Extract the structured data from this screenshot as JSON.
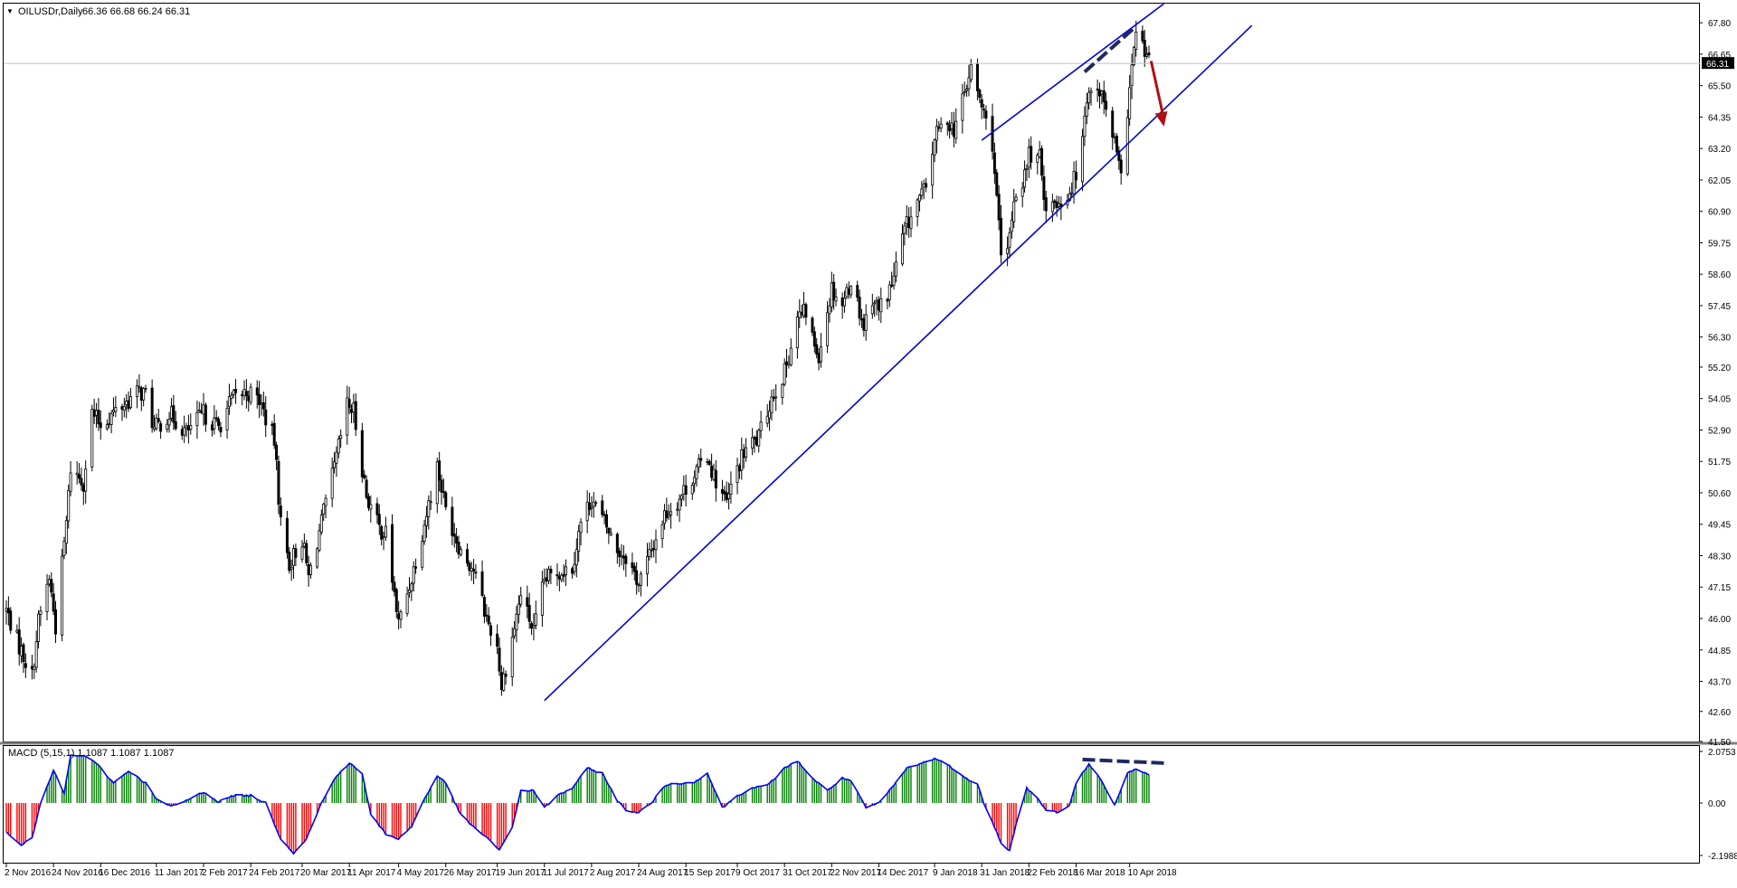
{
  "header": {
    "dropdown_glyph": "▼",
    "symbol_timeframe": "OILUSDr,Daily",
    "ohlc": "66.36 66.68 66.24 66.31"
  },
  "macd_panel": {
    "label": "MACD (5,15,1) 1.1087 1.1087 1.1087",
    "scale_ticks": [
      "2.0753",
      "0.00",
      "-2.1988"
    ]
  },
  "price_axis": {
    "ticks": [
      "67.80",
      "66.65",
      "65.50",
      "64.35",
      "63.20",
      "62.05",
      "60.90",
      "59.75",
      "58.60",
      "57.45",
      "56.30",
      "55.20",
      "54.05",
      "52.90",
      "51.75",
      "50.60",
      "49.45",
      "48.30",
      "47.15",
      "46.00",
      "44.85",
      "43.70",
      "42.60",
      "41.50"
    ],
    "current_price_label": "66.31"
  },
  "time_axis": {
    "labels": [
      "2 Nov 2016",
      "24 Nov 2016",
      "16 Dec 2016",
      "11 Jan 2017",
      "2 Feb 2017",
      "24 Feb 2017",
      "20 Mar 2017",
      "11 Apr 2017",
      "4 May 2017",
      "26 May 2017",
      "19 Jun 2017",
      "11 Jul 2017",
      "2 Aug 2017",
      "24 Aug 2017",
      "15 Sep 2017",
      "9 Oct 2017",
      "31 Oct 2017",
      "22 Nov 2017",
      "14 Dec 2017",
      "9 Jan 2018",
      "31 Jan 2018",
      "22 Feb 2018",
      "16 Mar 2018",
      "10 Apr 2018"
    ]
  },
  "chart_data": [
    {
      "type": "candlestick",
      "title": "OILUSDr,Daily",
      "x_range": [
        "2 Nov 2016",
        "19 Apr 2018"
      ],
      "ylim": [
        41.5,
        68.5
      ],
      "grid": false,
      "current_price": 66.31,
      "anchors": [
        [
          "2 Nov 2016",
          46.3
        ],
        [
          "8 Nov 2016",
          45.0
        ],
        [
          "14 Nov 2016",
          43.9
        ],
        [
          "17 Nov 2016",
          45.9
        ],
        [
          "22 Nov 2016",
          47.5
        ],
        [
          "25 Nov 2016",
          45.7
        ],
        [
          "30 Nov 2016",
          49.5
        ],
        [
          "2 Dec 2016",
          51.5
        ],
        [
          "8 Dec 2016",
          51.0
        ],
        [
          "12 Dec 2016",
          53.5
        ],
        [
          "16 Dec 2016",
          53.1
        ],
        [
          "23 Dec 2016",
          53.6
        ],
        [
          "3 Jan 2017",
          54.3
        ],
        [
          "6 Jan 2017",
          54.2
        ],
        [
          "10 Jan 2017",
          52.9
        ],
        [
          "17 Jan 2017",
          53.5
        ],
        [
          "25 Jan 2017",
          52.8
        ],
        [
          "2 Feb 2017",
          53.5
        ],
        [
          "9 Feb 2017",
          53.0
        ],
        [
          "15 Feb 2017",
          54.0
        ],
        [
          "22 Feb 2017",
          54.3
        ],
        [
          "28 Feb 2017",
          54.0
        ],
        [
          "7 Mar 2017",
          52.5
        ],
        [
          "10 Mar 2017",
          49.5
        ],
        [
          "14 Mar 2017",
          48.0
        ],
        [
          "20 Mar 2017",
          48.9
        ],
        [
          "23 Mar 2017",
          47.5
        ],
        [
          "29 Mar 2017",
          49.5
        ],
        [
          "4 Apr 2017",
          51.5
        ],
        [
          "10 Apr 2017",
          53.8
        ],
        [
          "13 Apr 2017",
          53.6
        ],
        [
          "19 Apr 2017",
          50.5
        ],
        [
          "25 Apr 2017",
          49.3
        ],
        [
          "28 Apr 2017",
          49.1
        ],
        [
          "4 May 2017",
          45.8
        ],
        [
          "10 May 2017",
          47.5
        ],
        [
          "16 May 2017",
          49.5
        ],
        [
          "22 May 2017",
          51.6
        ],
        [
          "26 May 2017",
          50.0
        ],
        [
          "2 Jun 2017",
          48.5
        ],
        [
          "8 Jun 2017",
          47.8
        ],
        [
          "14 Jun 2017",
          46.0
        ],
        [
          "19 Jun 2017",
          45.0
        ],
        [
          "21 Jun 2017",
          43.5
        ],
        [
          "26 Jun 2017",
          45.3
        ],
        [
          "30 Jun 2017",
          46.9
        ],
        [
          "6 Jul 2017",
          45.5
        ],
        [
          "11 Jul 2017",
          47.4
        ],
        [
          "17 Jul 2017",
          47.7
        ],
        [
          "24 Jul 2017",
          47.9
        ],
        [
          "28 Jul 2017",
          49.5
        ],
        [
          "2 Aug 2017",
          50.4
        ],
        [
          "8 Aug 2017",
          49.5
        ],
        [
          "14 Aug 2017",
          48.5
        ],
        [
          "18 Aug 2017",
          48.3
        ],
        [
          "24 Aug 2017",
          47.3
        ],
        [
          "30 Aug 2017",
          48.5
        ],
        [
          "5 Sep 2017",
          49.8
        ],
        [
          "11 Sep 2017",
          50.3
        ],
        [
          "15 Sep 2017",
          50.8
        ],
        [
          "20 Sep 2017",
          51.4
        ],
        [
          "25 Sep 2017",
          52.0
        ],
        [
          "28 Sep 2017",
          51.2
        ],
        [
          "4 Oct 2017",
          50.2
        ],
        [
          "9 Oct 2017",
          51.5
        ],
        [
          "13 Oct 2017",
          52.2
        ],
        [
          "19 Oct 2017",
          52.6
        ],
        [
          "25 Oct 2017",
          54.1
        ],
        [
          "31 Oct 2017",
          55.0
        ],
        [
          "6 Nov 2017",
          57.0
        ],
        [
          "10 Nov 2017",
          57.2
        ],
        [
          "14 Nov 2017",
          56.0
        ],
        [
          "16 Nov 2017",
          55.7
        ],
        [
          "22 Nov 2017",
          58.1
        ],
        [
          "27 Nov 2017",
          57.5
        ],
        [
          "1 Dec 2017",
          58.4
        ],
        [
          "7 Dec 2017",
          56.7
        ],
        [
          "11 Dec 2017",
          57.8
        ],
        [
          "14 Dec 2017",
          57.3
        ],
        [
          "20 Dec 2017",
          58.2
        ],
        [
          "26 Dec 2017",
          60.2
        ],
        [
          "2 Jan 2018",
          61.4
        ],
        [
          "5 Jan 2018",
          61.7
        ],
        [
          "9 Jan 2018",
          63.6
        ],
        [
          "15 Jan 2018",
          64.3
        ],
        [
          "18 Jan 2018",
          63.9
        ],
        [
          "23 Jan 2018",
          65.2
        ],
        [
          "26 Jan 2018",
          66.1
        ],
        [
          "31 Jan 2018",
          64.7
        ],
        [
          "5 Feb 2018",
          63.4
        ],
        [
          "9 Feb 2018",
          59.2
        ],
        [
          "12 Feb 2018",
          59.3
        ],
        [
          "15 Feb 2018",
          61.4
        ],
        [
          "20 Feb 2018",
          62.2
        ],
        [
          "22 Feb 2018",
          63.0
        ],
        [
          "27 Feb 2018",
          62.8
        ],
        [
          "2 Mar 2018",
          61.1
        ],
        [
          "7 Mar 2018",
          61.2
        ],
        [
          "12 Mar 2018",
          61.5
        ],
        [
          "16 Mar 2018",
          62.2
        ],
        [
          "21 Mar 2018",
          65.1
        ],
        [
          "26 Mar 2018",
          65.6
        ],
        [
          "29 Mar 2018",
          64.8
        ],
        [
          "3 Apr 2018",
          63.4
        ],
        [
          "6 Apr 2018",
          62.0
        ],
        [
          "10 Apr 2018",
          65.5
        ],
        [
          "13 Apr 2018",
          67.4
        ],
        [
          "17 Apr 2018",
          66.7
        ],
        [
          "19 Apr 2018",
          66.3
        ]
      ],
      "annotations": {
        "channel_support_line": {
          "points": [
            [
              "11 Jul 2017",
              43.0
            ],
            [
              "6 Jun 2018",
              67.7
            ]
          ],
          "color": "#0000d8"
        },
        "channel_upper_line": {
          "points": [
            [
              "31 Jan 2018",
              63.5
            ],
            [
              "26 Apr 2018",
              68.5
            ]
          ],
          "color": "#0000d8"
        },
        "price_high_dashed_line": {
          "points": [
            [
              "20 Mar 2018",
              66.0
            ],
            [
              "12 Apr 2018",
              67.6
            ]
          ],
          "color": "#1f2a60"
        },
        "down_arrow": {
          "points": [
            [
              "20 Apr 2018",
              66.4
            ],
            [
              "26 Apr 2018",
              64.0
            ]
          ],
          "color": "#b01010"
        }
      },
      "colors": {
        "candle": "#000000",
        "current_price_line": "#c0c0c0",
        "trendline": "#0000d8"
      }
    },
    {
      "type": "macd_histogram",
      "title": "MACD (5,15,1)",
      "params": [
        5,
        15,
        1
      ],
      "value": 1.1087,
      "ylim": [
        -2.1988,
        2.0753
      ],
      "anchors": [
        [
          "2 Nov 2016",
          -1.2
        ],
        [
          "9 Nov 2016",
          -1.75
        ],
        [
          "14 Nov 2016",
          -1.5
        ],
        [
          "18 Nov 2016",
          0.0
        ],
        [
          "24 Nov 2016",
          1.3
        ],
        [
          "29 Nov 2016",
          0.4
        ],
        [
          "2 Dec 2016",
          1.9
        ],
        [
          "9 Dec 2016",
          1.9
        ],
        [
          "15 Dec 2016",
          1.5
        ],
        [
          "22 Dec 2016",
          0.8
        ],
        [
          "29 Dec 2016",
          1.3
        ],
        [
          "6 Jan 2017",
          0.8
        ],
        [
          "11 Jan 2017",
          0.15
        ],
        [
          "18 Jan 2017",
          -0.15
        ],
        [
          "25 Jan 2017",
          0.1
        ],
        [
          "2 Feb 2017",
          0.45
        ],
        [
          "9 Feb 2017",
          0.05
        ],
        [
          "16 Feb 2017",
          0.3
        ],
        [
          "24 Feb 2017",
          0.3
        ],
        [
          "3 Mar 2017",
          0.0
        ],
        [
          "10 Mar 2017",
          -1.5
        ],
        [
          "16 Mar 2017",
          -2.1
        ],
        [
          "22 Mar 2017",
          -1.5
        ],
        [
          "29 Mar 2017",
          0.0
        ],
        [
          "5 Apr 2017",
          1.1
        ],
        [
          "11 Apr 2017",
          1.6
        ],
        [
          "17 Apr 2017",
          1.2
        ],
        [
          "21 Apr 2017",
          -0.5
        ],
        [
          "28 Apr 2017",
          -1.3
        ],
        [
          "4 May 2017",
          -1.5
        ],
        [
          "10 May 2017",
          -1.0
        ],
        [
          "15 May 2017",
          0.0
        ],
        [
          "22 May 2017",
          1.1
        ],
        [
          "26 May 2017",
          0.8
        ],
        [
          "2 Jun 2017",
          -0.5
        ],
        [
          "9 Jun 2017",
          -1.1
        ],
        [
          "15 Jun 2017",
          -1.5
        ],
        [
          "20 Jun 2017",
          -2.0
        ],
        [
          "26 Jun 2017",
          -1.0
        ],
        [
          "30 Jun 2017",
          0.5
        ],
        [
          "6 Jul 2017",
          0.5
        ],
        [
          "11 Jul 2017",
          -0.2
        ],
        [
          "17 Jul 2017",
          0.3
        ],
        [
          "24 Jul 2017",
          0.6
        ],
        [
          "31 Jul 2017",
          1.4
        ],
        [
          "7 Aug 2017",
          1.2
        ],
        [
          "14 Aug 2017",
          0.1
        ],
        [
          "18 Aug 2017",
          -0.3
        ],
        [
          "24 Aug 2017",
          -0.4
        ],
        [
          "30 Aug 2017",
          0.0
        ],
        [
          "5 Sep 2017",
          0.7
        ],
        [
          "11 Sep 2017",
          0.8
        ],
        [
          "18 Sep 2017",
          0.8
        ],
        [
          "25 Sep 2017",
          1.2
        ],
        [
          "2 Oct 2017",
          -0.2
        ],
        [
          "9 Oct 2017",
          0.3
        ],
        [
          "16 Oct 2017",
          0.6
        ],
        [
          "23 Oct 2017",
          0.7
        ],
        [
          "31 Oct 2017",
          1.4
        ],
        [
          "6 Nov 2017",
          1.7
        ],
        [
          "13 Nov 2017",
          1.0
        ],
        [
          "20 Nov 2017",
          0.5
        ],
        [
          "27 Nov 2017",
          1.0
        ],
        [
          "1 Dec 2017",
          0.9
        ],
        [
          "8 Dec 2017",
          -0.2
        ],
        [
          "14 Dec 2017",
          0.0
        ],
        [
          "20 Dec 2017",
          0.6
        ],
        [
          "27 Dec 2017",
          1.4
        ],
        [
          "3 Jan 2018",
          1.6
        ],
        [
          "9 Jan 2018",
          1.8
        ],
        [
          "16 Jan 2018",
          1.5
        ],
        [
          "23 Jan 2018",
          1.0
        ],
        [
          "29 Jan 2018",
          0.8
        ],
        [
          "1 Feb 2018",
          0.0
        ],
        [
          "6 Feb 2018",
          -1.0
        ],
        [
          "9 Feb 2018",
          -1.7
        ],
        [
          "13 Feb 2018",
          -2.0
        ],
        [
          "16 Feb 2018",
          -0.9
        ],
        [
          "21 Feb 2018",
          0.6
        ],
        [
          "26 Feb 2018",
          0.2
        ],
        [
          "2 Mar 2018",
          -0.3
        ],
        [
          "8 Mar 2018",
          -0.4
        ],
        [
          "13 Mar 2018",
          -0.1
        ],
        [
          "16 Mar 2018",
          0.8
        ],
        [
          "22 Mar 2018",
          1.6
        ],
        [
          "27 Mar 2018",
          1.0
        ],
        [
          "3 Apr 2018",
          -0.1
        ],
        [
          "9 Apr 2018",
          1.2
        ],
        [
          "13 Apr 2018",
          1.4
        ],
        [
          "19 Apr 2018",
          1.1087
        ]
      ],
      "annotations": {
        "divergence_dashed_line": {
          "points": [
            [
              "19 Mar 2018",
              1.75
            ],
            [
              "28 Apr 2018",
              1.6
            ]
          ],
          "color": "#1f2a60"
        }
      },
      "colors": {
        "positive_bar": "#008000",
        "negative_bar": "#ff0000",
        "signal_line": "#0000ff"
      }
    }
  ]
}
